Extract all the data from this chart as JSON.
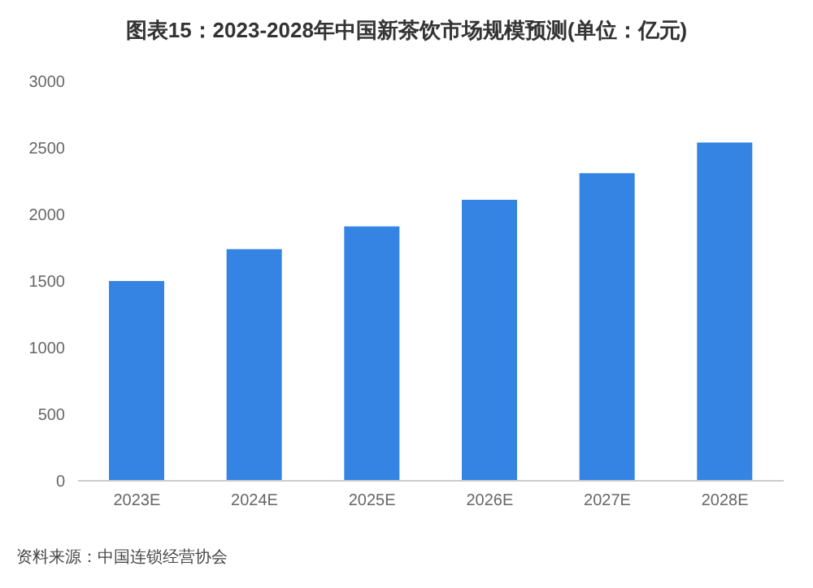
{
  "chart_data": {
    "type": "bar",
    "title": "图表15：2023-2028年中国新茶饮市场规模预测(单位：亿元)",
    "categories": [
      "2023E",
      "2024E",
      "2025E",
      "2026E",
      "2027E",
      "2028E"
    ],
    "values": [
      1500,
      1740,
      1910,
      2110,
      2310,
      2540
    ],
    "color": "#3584e4",
    "ylim": [
      0,
      3000
    ],
    "yticks": [
      0,
      500,
      1000,
      1500,
      2000,
      2500,
      3000
    ],
    "grid": false,
    "annotations": [
      "资料来源：中国连锁经营协会"
    ]
  }
}
